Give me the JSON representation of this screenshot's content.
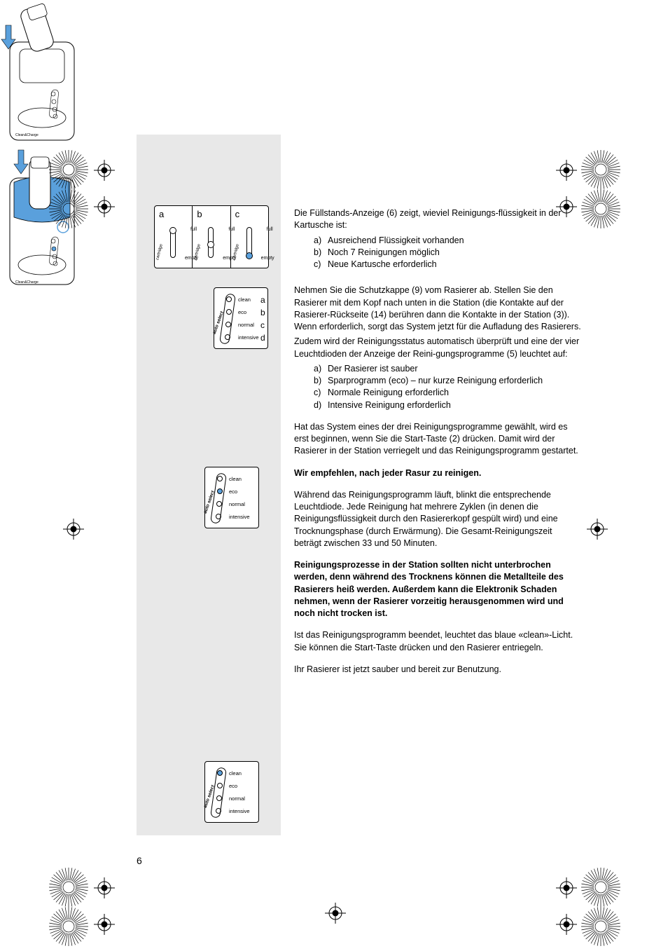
{
  "pageNumber": "6",
  "colors": {
    "background": "#e8e8e8",
    "accent": "#5aa0dc",
    "text": "#000000",
    "white": "#ffffff"
  },
  "panelABC": {
    "letters": [
      "a",
      "b",
      "c"
    ],
    "full": "full",
    "empty": "empty",
    "cartridge": "cartridge",
    "dotPositions": [
      4,
      24,
      40
    ]
  },
  "autoSelect": {
    "sideLabel": "auto select",
    "rows": [
      {
        "label": "clean",
        "letter": "a"
      },
      {
        "label": "eco",
        "letter": "b"
      },
      {
        "label": "normal",
        "letter": "c"
      },
      {
        "label": "intensive",
        "letter": "d"
      }
    ]
  },
  "text": {
    "p1": "Die Füllstands-Anzeige (6) zeigt, wieviel Reinigungs-flüssigkeit in der Kartusche ist:",
    "p1list": [
      {
        "lbl": "a)",
        "txt": "Ausreichend Flüssigkeit vorhanden"
      },
      {
        "lbl": "b)",
        "txt": "Noch 7 Reinigungen möglich"
      },
      {
        "lbl": "c)",
        "txt": "Neue Kartusche erforderlich"
      }
    ],
    "p2a": "Nehmen Sie die Schutzkappe (9) vom Rasierer ab. Stellen Sie den Rasierer mit dem Kopf nach unten in die Station (die Kontakte auf der Rasierer-Rückseite (14) berühren dann die Kontakte in der Station (3)). Wenn erforderlich, sorgt das System jetzt für die Aufladung des Rasierers.",
    "p2b": "Zudem wird der Reinigungsstatus automatisch überprüft und eine der vier Leuchtdioden der Anzeige der Reini-gungsprogramme (5) leuchtet auf:",
    "p2list": [
      {
        "lbl": "a)",
        "txt": "Der Rasierer ist sauber"
      },
      {
        "lbl": "b)",
        "txt": "Sparprogramm (eco) – nur kurze Reinigung erforderlich"
      },
      {
        "lbl": "c)",
        "txt": "Normale Reinigung erforderlich"
      },
      {
        "lbl": "d)",
        "txt": "Intensive Reinigung erforderlich"
      }
    ],
    "p3": "Hat das System eines der drei Reinigungsprogramme gewählt, wird es erst beginnen, wenn Sie die Start-Taste (2) drücken. Damit wird der Rasierer in der Station verriegelt und das Reinigungsprogramm gestartet.",
    "p4": "Wir empfehlen, nach jeder Rasur zu reinigen.",
    "p5": "Während das Reinigungsprogramm läuft, blinkt die entsprechende Leuchtdiode. Jede Reinigung hat mehrere Zyklen (in denen die Reinigungsflüssigkeit durch den Rasiererkopf gespült wird) und eine Trocknungsphase (durch Erwärmung). Die Gesamt-Reinigungszeit beträgt zwischen 33 und 50 Minuten.",
    "p6": "Reinigungsprozesse in der Station sollten nicht unterbrochen werden, denn während des Trocknens können die Metallteile des Rasierers heiß werden. Außerdem kann die Elektronik Schaden nehmen, wenn der Rasierer vorzeitig herausgenommen wird und noch nicht trocken ist.",
    "p7": "Ist das Reinigungsprogramm beendet, leuchtet das blaue «clean»-Licht. Sie können die Start-Taste drücken und den Rasierer entriegeln.",
    "p8": "Ihr Rasierer ist jetzt sauber und bereit zur Benutzung."
  }
}
